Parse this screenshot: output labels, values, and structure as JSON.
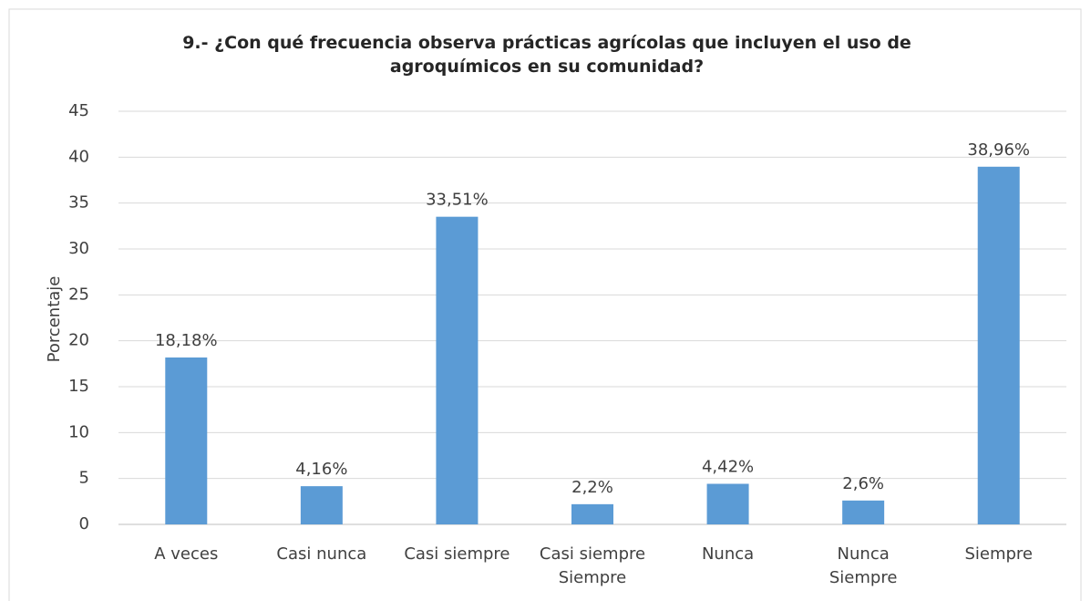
{
  "chart_data": {
    "type": "bar",
    "title": "9.- ¿Con qué frecuencia observa prácticas agrícolas que incluyen el uso de\nagroquímicos en su comunidad?",
    "y_label": "Porcentaje",
    "categories": [
      "A veces",
      "Casi nunca",
      "Casi siempre",
      "Casi siempre\nSiempre",
      "Nunca",
      "Nunca\nSiempre",
      "Siempre"
    ],
    "values": [
      18.18,
      4.16,
      33.51,
      2.2,
      4.42,
      2.6,
      38.96
    ],
    "value_labels": [
      "18,18%",
      "4,16%",
      "33,51%",
      "2,2%",
      "4,42%",
      "2,6%",
      "38,96%"
    ],
    "color": "#5b9bd5",
    "ylim": [
      0,
      45
    ],
    "yticks": [
      0,
      5,
      10,
      15,
      20,
      25,
      30,
      35,
      40,
      45
    ],
    "grid": true
  }
}
